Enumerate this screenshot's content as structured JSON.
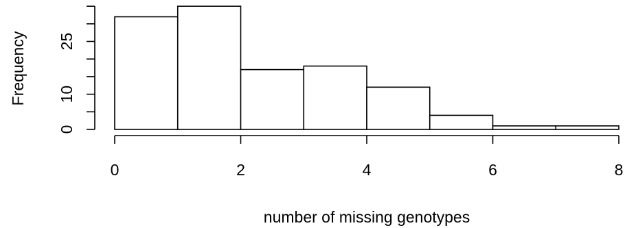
{
  "chart_data": {
    "type": "bar",
    "subtype": "histogram",
    "title": "",
    "xlabel": "number of missing genotypes",
    "ylabel": "Frequency",
    "bins": [
      {
        "start": 0,
        "end": 1,
        "count": 32
      },
      {
        "start": 1,
        "end": 2,
        "count": 35
      },
      {
        "start": 2,
        "end": 3,
        "count": 17
      },
      {
        "start": 3,
        "end": 4,
        "count": 18
      },
      {
        "start": 4,
        "end": 5,
        "count": 12
      },
      {
        "start": 5,
        "end": 6,
        "count": 4
      },
      {
        "start": 6,
        "end": 7,
        "count": 1
      },
      {
        "start": 7,
        "end": 8,
        "count": 1
      }
    ],
    "xlim": [
      0,
      8
    ],
    "ylim": [
      0,
      35
    ],
    "x_ticks": [
      0,
      2,
      4,
      6,
      8
    ],
    "y_ticks": [
      0,
      5,
      10,
      15,
      20,
      25,
      30,
      35
    ],
    "y_tick_labels": [
      "0",
      "",
      "10",
      "",
      "",
      "25",
      "",
      ""
    ],
    "grid": false,
    "legend": "none",
    "colors": {
      "fill": "#ffffff",
      "stroke": "#000000"
    }
  }
}
